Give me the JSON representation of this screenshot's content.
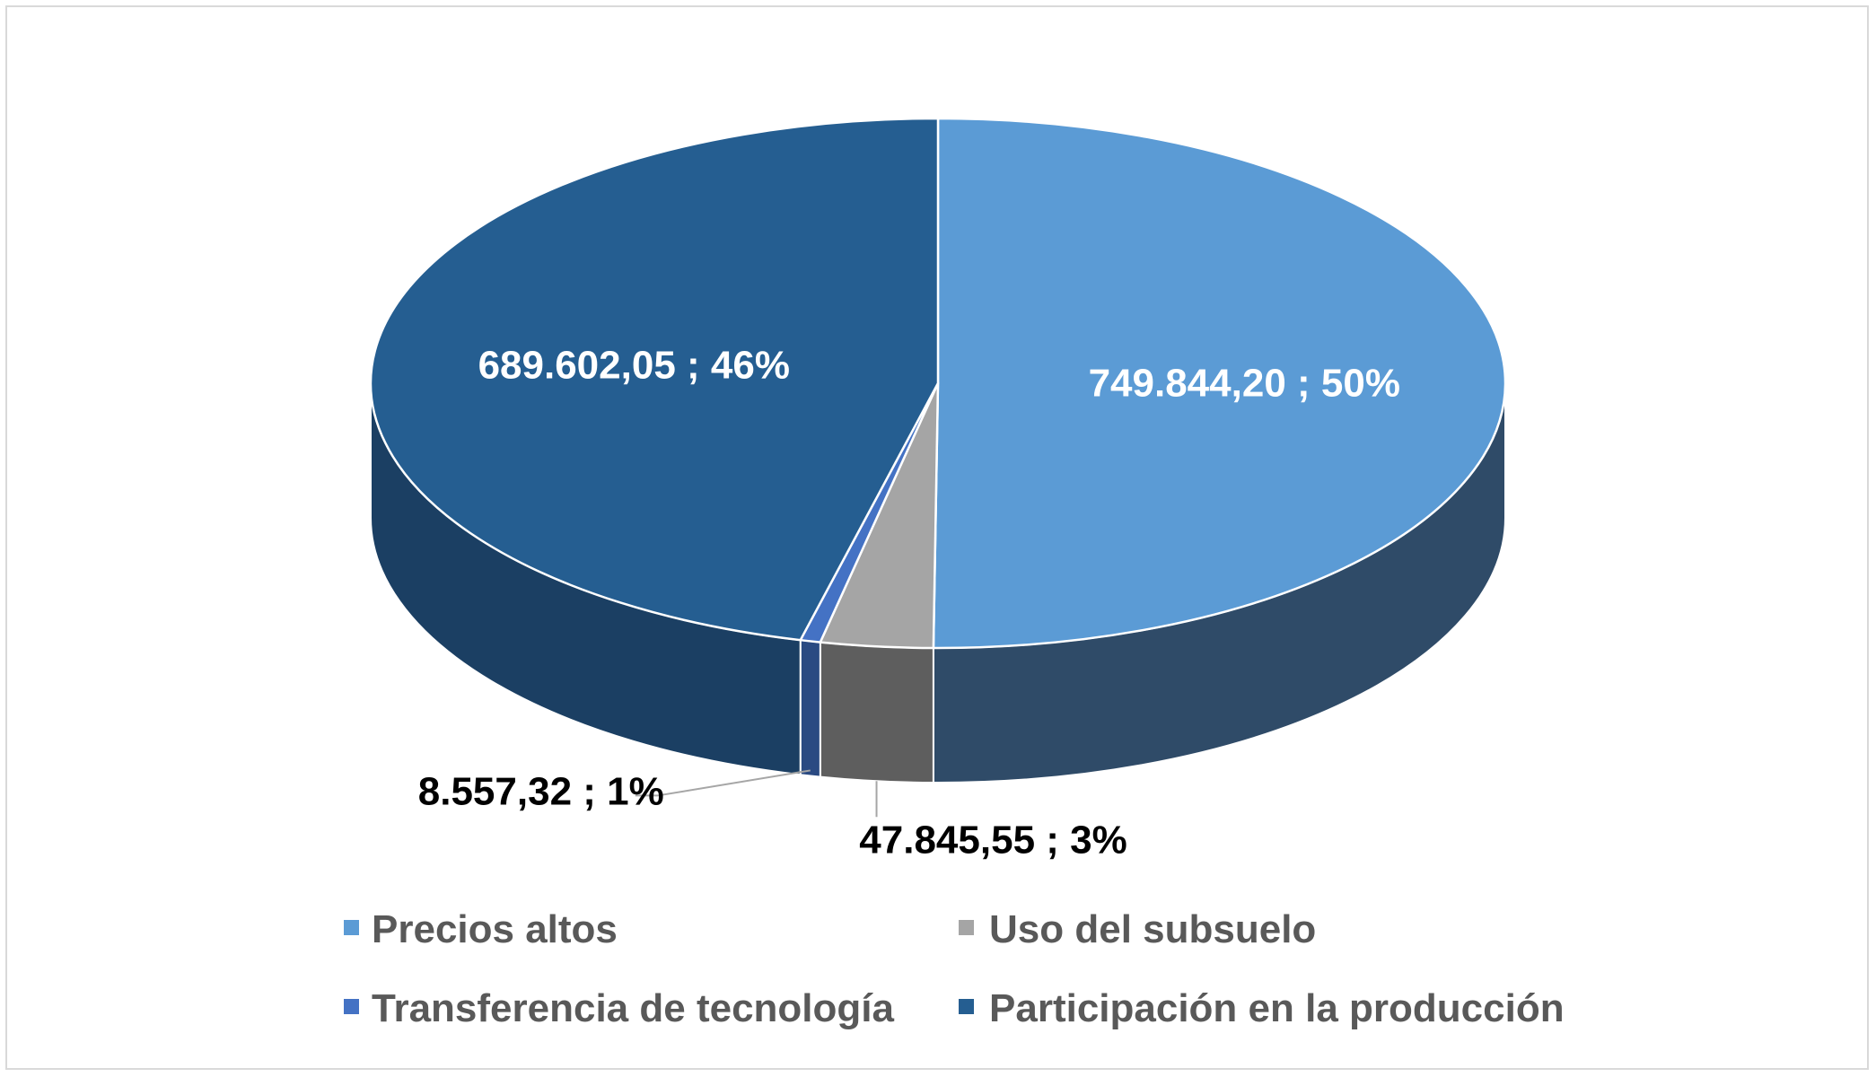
{
  "chart_data": {
    "type": "pie",
    "style": "3d",
    "slices": [
      {
        "name": "Precios altos",
        "value": 749844.2,
        "label": "749.844,20 ; 50%",
        "color": "#5b9bd5",
        "side_color": "#2f4b68",
        "label_color": "#ffffff"
      },
      {
        "name": "Uso del subsuelo",
        "value": 47845.55,
        "label": "47.845,55 ; 3%",
        "color": "#a5a5a5",
        "side_color": "#5e5e5e",
        "label_color": "#000000"
      },
      {
        "name": "Transferencia de tecnología",
        "value": 8557.32,
        "label": "8.557,32 ; 1%",
        "color": "#4472c4",
        "side_color": "#2a4a82",
        "label_color": "#000000"
      },
      {
        "name": "Participación en la producción",
        "value": 689602.05,
        "label": "689.602,05 ; 46%",
        "color": "#255e91",
        "side_color": "#1b3f63",
        "label_color": "#ffffff"
      }
    ],
    "legend_position": "bottom"
  }
}
